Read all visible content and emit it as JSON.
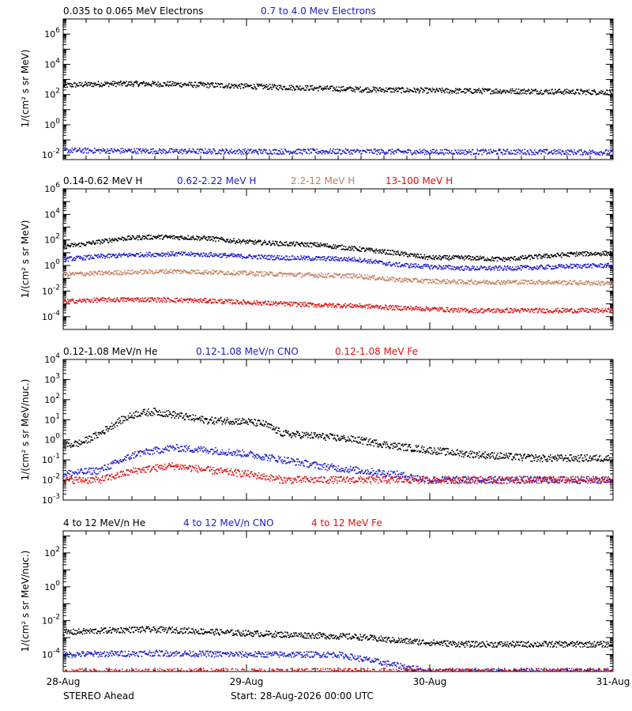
{
  "footer": {
    "spacecraft": "STEREO Ahead",
    "start": "Start: 28-Aug-2026 00:00 UTC"
  },
  "colors": {
    "black": "#000000",
    "blue": "#1a1acc",
    "brown": "#c08060",
    "red": "#dd1111"
  },
  "chart_data": [
    {
      "type": "scatter",
      "title": "",
      "ylabel": "1/(cm² s sr MeV)",
      "xlabel": "",
      "y_scale": "log",
      "ylim": [
        0.005,
        10000000
      ],
      "xlim": [
        0,
        3
      ],
      "x_ticks": [
        "28-Aug",
        "29-Aug",
        "30-Aug",
        "31-Aug"
      ],
      "y_ticks": [
        {
          "exp": -2,
          "label": "10-2"
        },
        {
          "exp": 0,
          "label": "100"
        },
        {
          "exp": 2,
          "label": "102"
        },
        {
          "exp": 4,
          "label": "104"
        },
        {
          "exp": 6,
          "label": "106"
        }
      ],
      "series": [
        {
          "name": "0.035 to 0.065 MeV Electrons",
          "color": "#000000",
          "x": [
            0,
            0.2,
            0.4,
            0.6,
            0.8,
            1.0,
            1.2,
            1.4,
            1.6,
            1.8,
            2.0,
            2.2,
            2.4,
            2.6,
            2.8,
            3.0
          ],
          "y": [
            400,
            500,
            520,
            480,
            420,
            350,
            300,
            260,
            220,
            200,
            180,
            170,
            170,
            160,
            150,
            140
          ]
        },
        {
          "name": "0.7 to 4.0 Mev Electrons",
          "color": "#1a1acc",
          "x": [
            0,
            0.5,
            1.0,
            1.5,
            2.0,
            2.5,
            3.0
          ],
          "y": [
            0.02,
            0.018,
            0.017,
            0.017,
            0.016,
            0.016,
            0.015
          ]
        }
      ]
    },
    {
      "type": "scatter",
      "title": "",
      "ylabel": "1/(cm² s sr MeV)",
      "xlabel": "",
      "y_scale": "log",
      "ylim": [
        1e-05,
        1000000
      ],
      "xlim": [
        0,
        3
      ],
      "x_ticks": [
        "28-Aug",
        "29-Aug",
        "30-Aug",
        "31-Aug"
      ],
      "y_ticks": [
        {
          "exp": -4,
          "label": "10-4"
        },
        {
          "exp": -2,
          "label": "10-2"
        },
        {
          "exp": 0,
          "label": "100"
        },
        {
          "exp": 2,
          "label": "102"
        },
        {
          "exp": 4,
          "label": "104"
        },
        {
          "exp": 6,
          "label": "106"
        }
      ],
      "series": [
        {
          "name": "0.14-0.62 MeV H",
          "color": "#000000",
          "x": [
            0,
            0.1,
            0.2,
            0.3,
            0.4,
            0.5,
            0.6,
            0.7,
            0.8,
            0.9,
            1.0,
            1.1,
            1.2,
            1.4,
            1.6,
            1.8,
            2.0,
            2.2,
            2.4,
            2.6,
            2.8,
            3.0
          ],
          "y": [
            30,
            45,
            70,
            120,
            150,
            170,
            160,
            150,
            130,
            90,
            70,
            60,
            50,
            40,
            20,
            10,
            4,
            4,
            3,
            5,
            8,
            9
          ]
        },
        {
          "name": "0.62-2.22 MeV H",
          "color": "#1a1acc",
          "x": [
            0,
            0.2,
            0.4,
            0.6,
            0.8,
            1.0,
            1.2,
            1.4,
            1.6,
            1.8,
            2.0,
            2.2,
            2.4,
            2.6,
            2.8,
            3.0
          ],
          "y": [
            3,
            5,
            7,
            8,
            7,
            5,
            4,
            3.5,
            3,
            1.2,
            0.8,
            0.6,
            0.6,
            0.7,
            0.9,
            1
          ]
        },
        {
          "name": "2.2-12 MeV H",
          "color": "#c08060",
          "x": [
            0,
            0.2,
            0.4,
            0.6,
            0.8,
            1.0,
            1.2,
            1.4,
            1.6,
            1.8,
            2.0,
            2.2,
            2.4,
            2.6,
            2.8,
            3.0
          ],
          "y": [
            0.2,
            0.25,
            0.3,
            0.35,
            0.3,
            0.25,
            0.2,
            0.17,
            0.15,
            0.08,
            0.06,
            0.05,
            0.05,
            0.05,
            0.045,
            0.04
          ]
        },
        {
          "name": "13-100 MeV H",
          "color": "#dd1111",
          "x": [
            0,
            0.2,
            0.4,
            0.6,
            0.8,
            1.0,
            1.2,
            1.4,
            1.6,
            1.8,
            2.0,
            2.2,
            2.4,
            2.6,
            2.8,
            3.0
          ],
          "y": [
            0.0015,
            0.002,
            0.0022,
            0.002,
            0.0017,
            0.0013,
            0.001,
            0.0008,
            0.0007,
            0.0005,
            0.0004,
            0.0003,
            0.0003,
            0.0003,
            0.0003,
            0.0003
          ]
        }
      ]
    },
    {
      "type": "scatter",
      "title": "",
      "ylabel": "1/(cm² s sr MeV/nuc.)",
      "xlabel": "",
      "y_scale": "log",
      "ylim": [
        0.001,
        10000
      ],
      "xlim": [
        0,
        3
      ],
      "x_ticks": [
        "28-Aug",
        "29-Aug",
        "30-Aug",
        "31-Aug"
      ],
      "y_ticks": [
        {
          "exp": -3,
          "label": "10-3"
        },
        {
          "exp": -2,
          "label": "10-2"
        },
        {
          "exp": -1,
          "label": "10-1"
        },
        {
          "exp": 0,
          "label": "100"
        },
        {
          "exp": 1,
          "label": "101"
        },
        {
          "exp": 2,
          "label": "102"
        },
        {
          "exp": 3,
          "label": "103"
        },
        {
          "exp": 4,
          "label": "104"
        }
      ],
      "series": [
        {
          "name": "0.12-1.08 MeV/n He",
          "color": "#000000",
          "x": [
            0,
            0.1,
            0.2,
            0.3,
            0.4,
            0.5,
            0.6,
            0.7,
            0.8,
            0.9,
            1.0,
            1.1,
            1.2,
            1.4,
            1.6,
            1.8,
            2.0,
            2.2,
            2.4,
            2.6,
            2.8,
            3.0
          ],
          "y": [
            0.5,
            0.7,
            2,
            8,
            20,
            25,
            18,
            12,
            9,
            9,
            8,
            6,
            2,
            1.5,
            1,
            0.5,
            0.3,
            0.2,
            0.15,
            0.12,
            0.12,
            0.12
          ]
        },
        {
          "name": "0.12-1.08 MeV/n CNO",
          "color": "#1a1acc",
          "x": [
            0,
            0.2,
            0.4,
            0.6,
            0.8,
            1.0,
            1.2,
            1.4,
            1.6,
            1.8,
            2.0,
            2.2,
            2.4,
            2.6,
            2.8,
            3.0
          ],
          "y": [
            0.02,
            0.03,
            0.2,
            0.4,
            0.3,
            0.2,
            0.1,
            0.05,
            0.03,
            0.02,
            0.01,
            0.01,
            0.01,
            0.01,
            0.01,
            0.01
          ]
        },
        {
          "name": "0.12-1.08 MeV Fe",
          "color": "#dd1111",
          "x": [
            0,
            0.2,
            0.4,
            0.6,
            0.8,
            1.0,
            1.2,
            1.4,
            1.6,
            1.8,
            2.0,
            2.2,
            2.4,
            2.6,
            2.8,
            3.0
          ],
          "y": [
            0.01,
            0.01,
            0.03,
            0.05,
            0.03,
            0.02,
            0.01,
            0.01,
            0.01,
            0.01,
            0.01,
            0.01,
            0.01,
            0.01,
            0.01,
            0.01
          ]
        }
      ]
    },
    {
      "type": "scatter",
      "title": "",
      "ylabel": "1/(cm² s sr MeV/nuc.)",
      "xlabel": "",
      "y_scale": "log",
      "ylim": [
        1e-05,
        2000
      ],
      "xlim": [
        0,
        3
      ],
      "x_ticks": [
        "28-Aug",
        "29-Aug",
        "30-Aug",
        "31-Aug"
      ],
      "y_ticks": [
        {
          "exp": -4,
          "label": "10-4"
        },
        {
          "exp": -2,
          "label": "10-2"
        },
        {
          "exp": 0,
          "label": "100"
        },
        {
          "exp": 2,
          "label": "102"
        }
      ],
      "series": [
        {
          "name": "4 to 12 MeV/n He",
          "color": "#000000",
          "x": [
            0,
            0.2,
            0.4,
            0.6,
            0.8,
            1.0,
            1.2,
            1.4,
            1.6,
            1.8,
            2.0,
            2.2,
            2.4,
            2.6,
            2.8,
            3.0
          ],
          "y": [
            0.002,
            0.0025,
            0.003,
            0.0028,
            0.0022,
            0.0018,
            0.0015,
            0.0013,
            0.0011,
            0.0007,
            0.0005,
            0.0004,
            0.0004,
            0.0004,
            0.0004,
            0.0004
          ]
        },
        {
          "name": "4 to 12 MeV/n CNO",
          "color": "#1a1acc",
          "x": [
            0,
            0.5,
            1.0,
            1.5,
            2.0,
            2.5,
            3.0
          ],
          "y": [
            0.0001,
            0.00012,
            0.0001,
            0.0001,
            1e-05,
            1e-05,
            1e-05
          ]
        },
        {
          "name": "4 to 12 MeV Fe",
          "color": "#dd1111",
          "x": [
            0,
            1.5,
            3.0
          ],
          "y": [
            1e-05,
            1e-05,
            1e-05
          ]
        }
      ]
    }
  ]
}
